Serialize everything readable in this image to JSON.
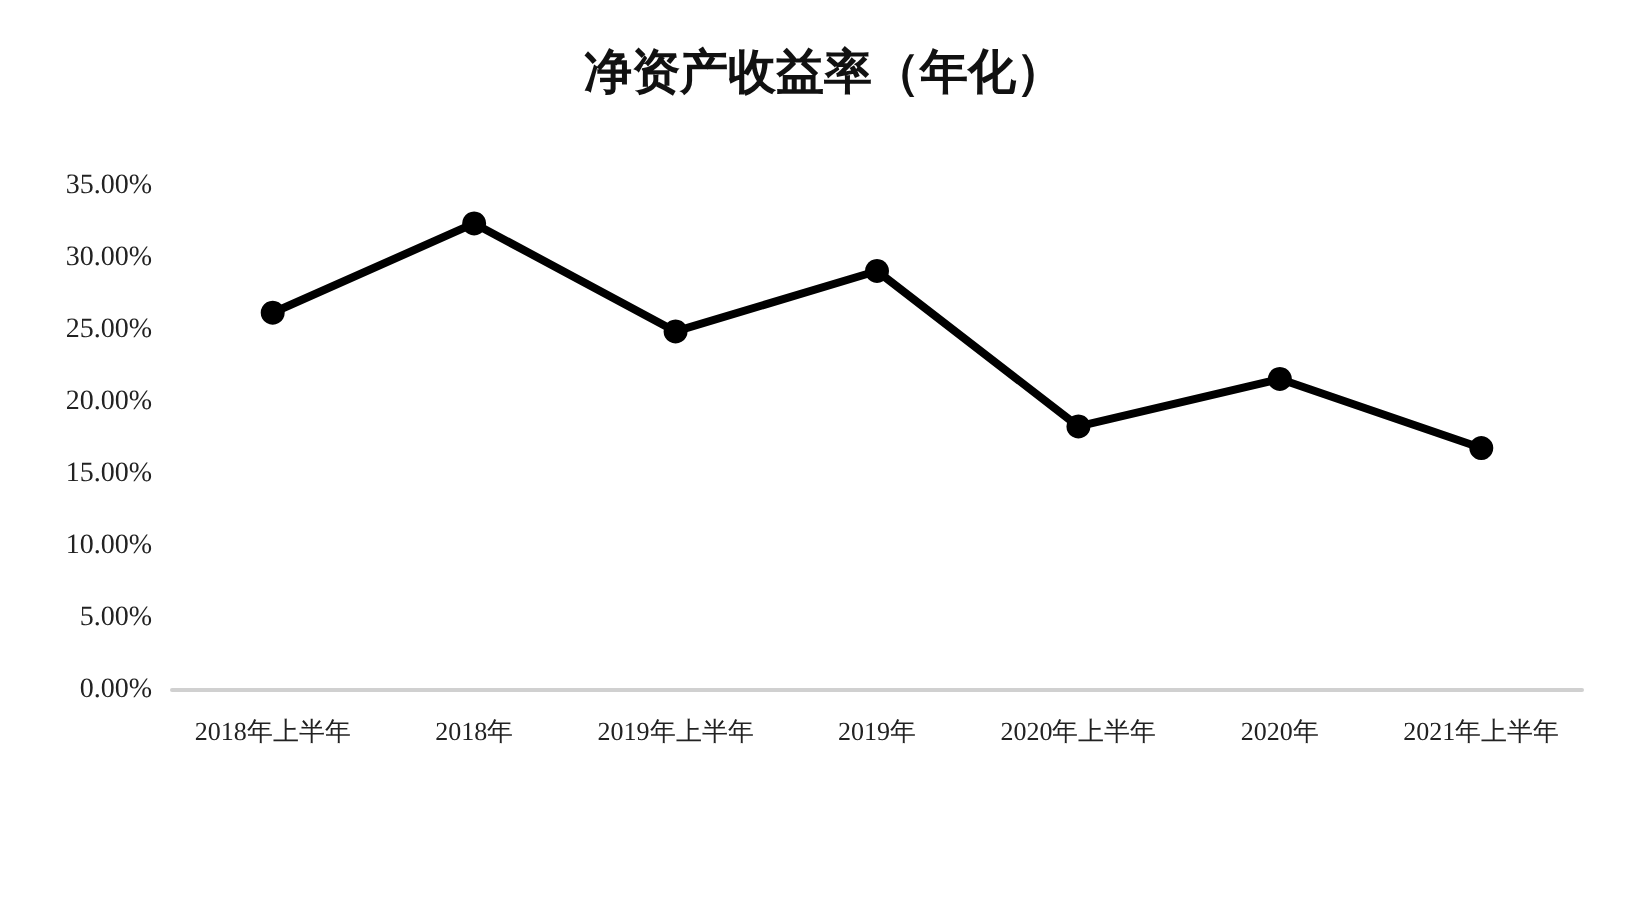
{
  "chart_data": {
    "type": "line",
    "title": "净资产收益率（年化）",
    "categories": [
      "2018年上半年",
      "2018年",
      "2019年上半年",
      "2019年",
      "2020年上半年",
      "2020年",
      "2021年上半年"
    ],
    "series": [
      {
        "color": "#000000",
        "values": [
          26.2,
          32.4,
          24.9,
          29.1,
          18.3,
          21.6,
          16.8
        ]
      }
    ],
    "ylim": [
      0,
      35
    ],
    "yticks": [
      {
        "value": 0,
        "label": "0.00%"
      },
      {
        "value": 5,
        "label": "5.00%"
      },
      {
        "value": 10,
        "label": "10.00%"
      },
      {
        "value": 15,
        "label": "15.00%"
      },
      {
        "value": 20,
        "label": "20.00%"
      },
      {
        "value": 25,
        "label": "25.00%"
      },
      {
        "value": 30,
        "label": "30.00%"
      },
      {
        "value": 35,
        "label": "35.00%"
      }
    ],
    "marker": "circle",
    "line_style": "solid"
  }
}
